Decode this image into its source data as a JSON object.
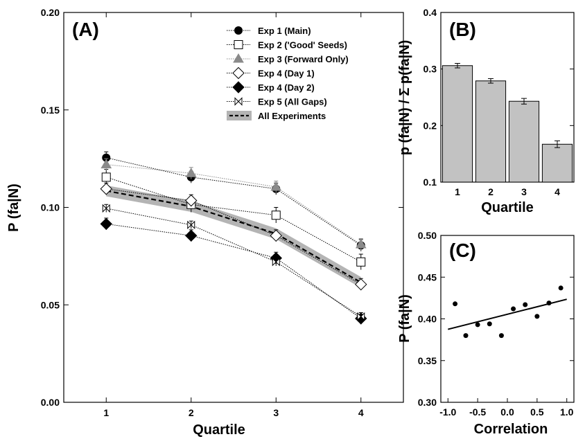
{
  "panels": [
    {
      "chart_data": {
        "type": "line",
        "panel_label": "(A)",
        "xlabel": "Quartile",
        "ylabel": "P (fa|N)",
        "x": [
          1,
          2,
          3,
          4
        ],
        "xticks": [
          "1",
          "2",
          "3",
          "4"
        ],
        "xlim": [
          0.5,
          4.5
        ],
        "ylim": [
          0,
          0.2
        ],
        "yticks": [
          "0.00",
          "0.05",
          "0.10",
          "0.15",
          "0.20"
        ],
        "grid": false,
        "legend_position": "top-right",
        "series": [
          {
            "name": "Exp 1 (Main)",
            "marker": "circle-filled",
            "color": "#000000",
            "values": [
              0.1255,
              0.1155,
              0.1095,
              0.0805
            ],
            "errors": [
              0.003,
              0.003,
              0.003,
              0.003
            ]
          },
          {
            "name": "Exp 2 ('Good' Seeds)",
            "marker": "square-open",
            "color": "#000000",
            "values": [
              0.1155,
              0.1015,
              0.096,
              0.072
            ],
            "errors": [
              0.004,
              0.004,
              0.004,
              0.004
            ]
          },
          {
            "name": "Exp 3 (Forward Only)",
            "marker": "triangle-filled",
            "color": "#8a8a8a",
            "values": [
              0.122,
              0.1175,
              0.1105,
              0.081
            ],
            "errors": [
              0.003,
              0.003,
              0.003,
              0.003
            ]
          },
          {
            "name": "Exp 4 (Day 1)",
            "marker": "diamond-open",
            "color": "#000000",
            "values": [
              0.1095,
              0.1035,
              0.0855,
              0.0605
            ],
            "errors": [
              0.003,
              0.003,
              0.003,
              0.003
            ]
          },
          {
            "name": "Exp 4 (Day 2)",
            "marker": "diamond-filled",
            "color": "#000000",
            "values": [
              0.0915,
              0.0855,
              0.074,
              0.043
            ],
            "errors": [
              0.003,
              0.003,
              0.003,
              0.003
            ]
          },
          {
            "name": "Exp 5 (All Gaps)",
            "marker": "bowtie",
            "color": "#000000",
            "values": [
              0.0995,
              0.091,
              0.072,
              0.044
            ],
            "errors": [
              0.002,
              0.002,
              0.002,
              0.002
            ]
          },
          {
            "name": "All Experiments",
            "marker": "none",
            "style": "dashed-with-band",
            "color": "#000000",
            "band_color": "#b4b4b4",
            "values": [
              0.1085,
              0.1005,
              0.0865,
              0.0615
            ],
            "errors": [
              0.002,
              0.002,
              0.002,
              0.002
            ]
          }
        ]
      }
    },
    {
      "chart_data": {
        "type": "bar",
        "panel_label": "(B)",
        "xlabel": "Quartile",
        "ylabel": "p (fa|N) / Σ p(fa|N)",
        "categories": [
          "1",
          "2",
          "3",
          "4"
        ],
        "values": [
          0.306,
          0.279,
          0.243,
          0.167
        ],
        "errors": [
          0.004,
          0.004,
          0.005,
          0.006
        ],
        "bar_color": "#c2c2c2",
        "ylim": [
          0.1,
          0.4
        ],
        "yticks": [
          "0.1",
          "0.2",
          "0.3",
          "0.4"
        ],
        "grid": false
      }
    },
    {
      "chart_data": {
        "type": "scatter",
        "panel_label": "(C)",
        "xlabel": "Correlation",
        "ylabel": "P (fa|N)",
        "x": [
          -0.88,
          -0.7,
          -0.5,
          -0.3,
          -0.1,
          0.1,
          0.3,
          0.5,
          0.7,
          0.9
        ],
        "y": [
          0.418,
          0.38,
          0.393,
          0.394,
          0.38,
          0.412,
          0.417,
          0.403,
          0.419,
          0.437
        ],
        "fit_line": {
          "x": [
            -1.0,
            1.0
          ],
          "y": [
            0.3875,
            0.4235
          ]
        },
        "xlim": [
          -1.0,
          1.0
        ],
        "ylim": [
          0.3,
          0.5
        ],
        "xticks": [
          "-1.0",
          "-0.5",
          "0.0",
          "0.5",
          "1.0"
        ],
        "yticks": [
          "0.30",
          "0.35",
          "0.40",
          "0.45",
          "0.50"
        ],
        "grid": false
      }
    }
  ]
}
